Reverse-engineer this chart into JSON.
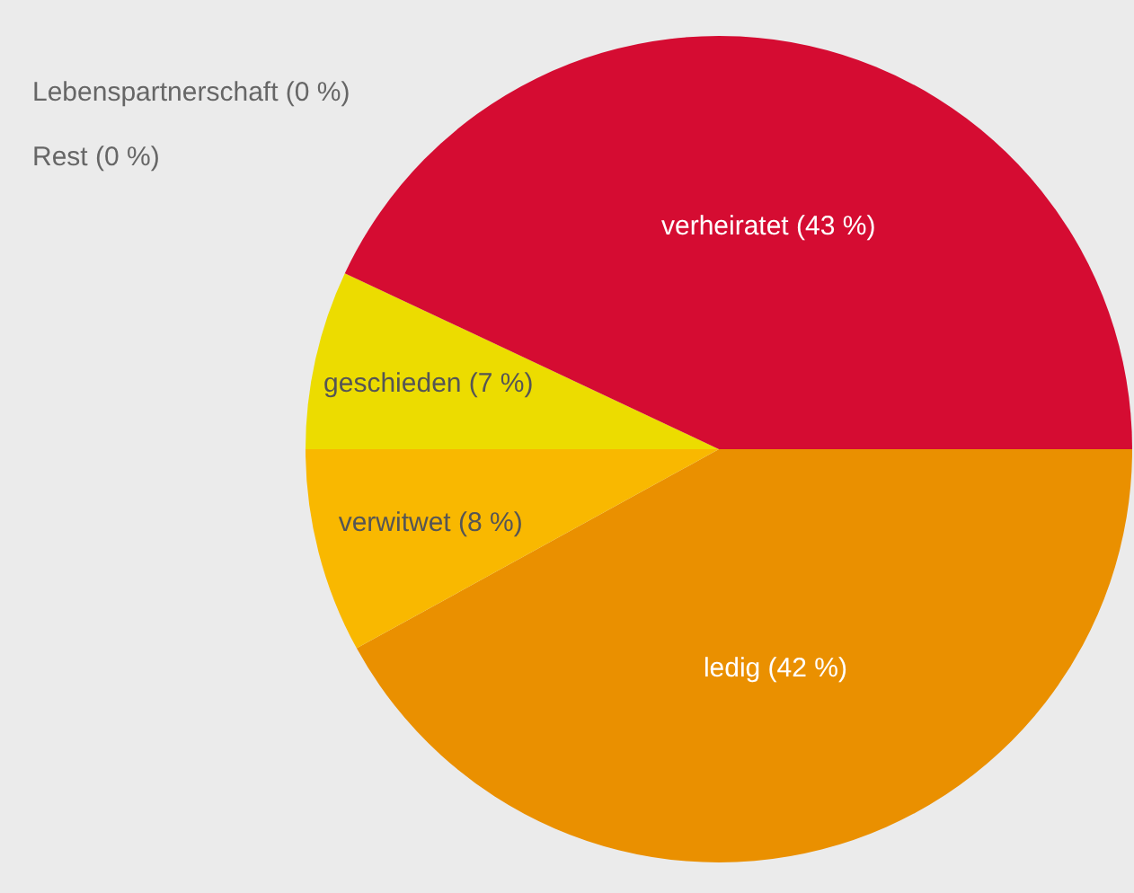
{
  "chart_data": {
    "type": "pie",
    "categories": [
      "ledig (42 %)",
      "verwitwet (8 %)",
      "geschieden (7 %)",
      "Lebenspartnerschaft (0 %)",
      "Rest (0 %)",
      "verheiratet (43 %)"
    ],
    "values": [
      42,
      8,
      7,
      0,
      0,
      43
    ],
    "colors": [
      "#ea9000",
      "#f9b800",
      "#ecdc00",
      "#b0b0b0",
      "#909090",
      "#d50c32"
    ],
    "legend": false
  }
}
